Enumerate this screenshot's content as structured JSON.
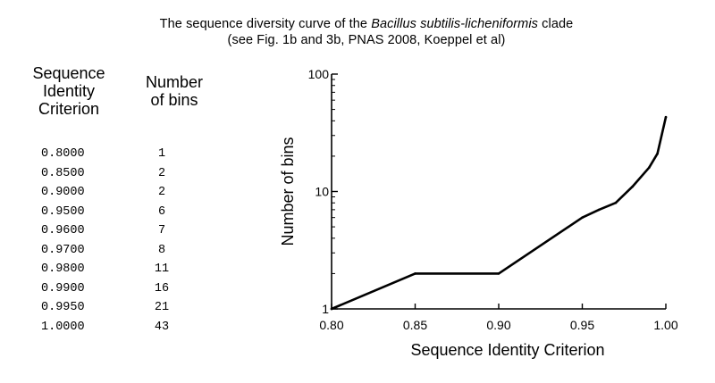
{
  "title_pre": "The sequence diversity curve of the ",
  "title_italic": "Bacillus subtilis-licheniformis",
  "title_post": " clade",
  "title_line2": "(see Fig. 1b and 3b, PNAS 2008, Koeppel et al)",
  "table": {
    "header_criterion": [
      "Sequence",
      "Identity",
      "Criterion"
    ],
    "header_bins": [
      "Number",
      "of bins"
    ],
    "rows": [
      {
        "criterion": "0.8000",
        "bins": "1"
      },
      {
        "criterion": "0.8500",
        "bins": "2"
      },
      {
        "criterion": "0.9000",
        "bins": "2"
      },
      {
        "criterion": "0.9500",
        "bins": "6"
      },
      {
        "criterion": "0.9600",
        "bins": "7"
      },
      {
        "criterion": "0.9700",
        "bins": "8"
      },
      {
        "criterion": "0.9800",
        "bins": "11"
      },
      {
        "criterion": "0.9900",
        "bins": "16"
      },
      {
        "criterion": "0.9950",
        "bins": "21"
      },
      {
        "criterion": "1.0000",
        "bins": "43"
      }
    ]
  },
  "chart_data": {
    "type": "line",
    "xlabel": "Sequence Identity Criterion",
    "ylabel": "Number of bins",
    "yscale": "log",
    "xlim": [
      0.8,
      1.0
    ],
    "ylim": [
      1,
      100
    ],
    "xticks": [
      "0.80",
      "0.85",
      "0.90",
      "0.95",
      "1.00"
    ],
    "yticks": [
      "1",
      "10",
      "100"
    ],
    "grid": false,
    "series": [
      {
        "x": [
          0.8,
          0.85,
          0.9,
          0.95,
          0.96,
          0.97,
          0.98,
          0.99,
          0.995,
          1.0
        ],
        "y": [
          1,
          2,
          2,
          6,
          7,
          8,
          11,
          16,
          21,
          43
        ],
        "color": "#000000"
      }
    ]
  }
}
